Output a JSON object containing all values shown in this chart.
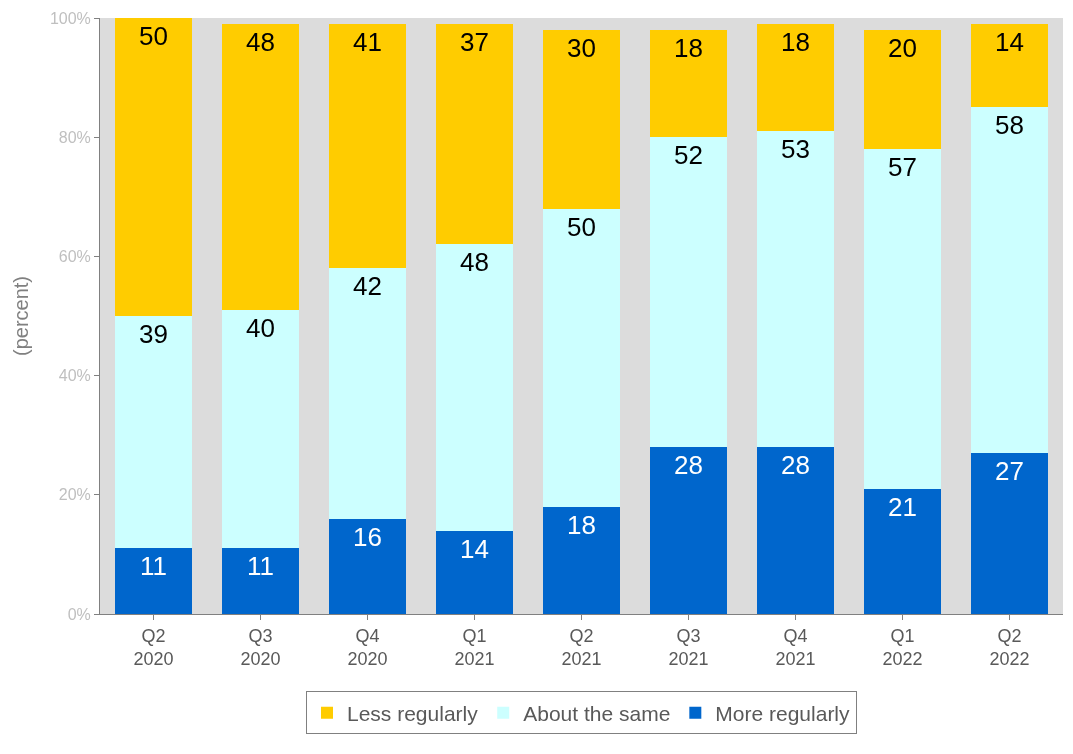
{
  "chart_data": {
    "type": "bar",
    "stacked": true,
    "ylabel": "(percent)",
    "categories": [
      "Q2\n2020",
      "Q3\n2020",
      "Q4\n2020",
      "Q1\n2021",
      "Q2\n2021",
      "Q3\n2021",
      "Q4\n2021",
      "Q1\n2022",
      "Q2\n2022"
    ],
    "series": [
      {
        "name": "More regularly",
        "color": "#0066cc",
        "values": [
          11,
          11,
          16,
          14,
          18,
          28,
          28,
          21,
          27
        ]
      },
      {
        "name": "About the same",
        "color": "#ccffff",
        "values": [
          39,
          40,
          42,
          48,
          50,
          52,
          53,
          57,
          58
        ]
      },
      {
        "name": "Less regularly",
        "color": "#ffcc00",
        "values": [
          50,
          48,
          41,
          37,
          30,
          18,
          18,
          20,
          14
        ]
      }
    ],
    "ylim": [
      0,
      100
    ],
    "yticks": [
      {
        "value": 0,
        "label": "0%"
      },
      {
        "value": 20,
        "label": "20%"
      },
      {
        "value": 40,
        "label": "40%"
      },
      {
        "value": 60,
        "label": "60%"
      },
      {
        "value": 80,
        "label": "80%"
      },
      {
        "value": 100,
        "label": "100%"
      }
    ],
    "data_labels": true,
    "legend": "bottom",
    "grid": false
  }
}
